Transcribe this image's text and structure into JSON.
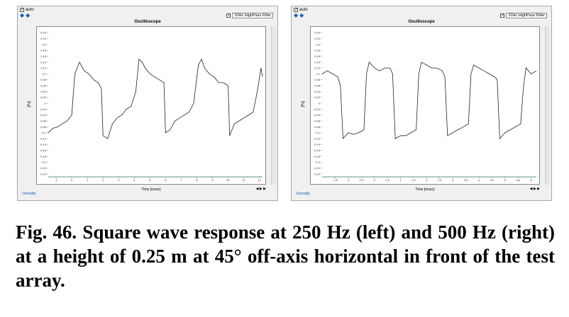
{
  "panels": [
    {
      "auto_label": "auto",
      "filter_label": "10Hz HighPass Filter",
      "title": "Oscilloscope",
      "y_axis_label": "[Pa]",
      "x_axis_label": "Time [msec]",
      "omni_label": "Omnidity",
      "zoom_label": "◀ ▶ ▶",
      "chart_data": {
        "type": "line",
        "title": "Oscilloscope",
        "xlabel": "Time [msec]",
        "ylabel": "[Pa]",
        "xlim": [
          -1.5,
          12.2
        ],
        "ylim": [
          -0.25,
          0.25
        ],
        "x_ticks": [
          -1,
          0,
          1,
          2,
          3,
          4,
          5,
          6,
          7,
          8,
          9,
          10,
          11,
          12
        ],
        "y_ticks": [
          0.24,
          0.22,
          0.2,
          0.18,
          0.16,
          0.14,
          0.12,
          0.1,
          0.08,
          0.06,
          0.04,
          0.02,
          0,
          -0.02,
          -0.04,
          -0.06,
          -0.08,
          -0.1,
          -0.12,
          -0.14,
          -0.16,
          -0.18,
          -0.2,
          -0.22,
          -0.24
        ],
        "x": [
          -1.5,
          -1.2,
          -0.9,
          -0.6,
          -0.3,
          0.0,
          0.2,
          0.5,
          0.8,
          1.1,
          1.4,
          1.7,
          1.9,
          2.0,
          2.3,
          2.6,
          2.9,
          3.2,
          3.5,
          3.8,
          4.1,
          4.3,
          4.5,
          4.7,
          5.0,
          5.3,
          5.6,
          5.9,
          6.0,
          6.3,
          6.6,
          6.9,
          7.2,
          7.5,
          7.8,
          8.1,
          8.3,
          8.5,
          8.8,
          9.1,
          9.4,
          9.7,
          10.0,
          10.1,
          10.4,
          10.7,
          11.0,
          11.3,
          11.6,
          11.9,
          12.1,
          12.2
        ],
        "series": [
          {
            "values": [
              -0.1,
              -0.085,
              -0.08,
              -0.07,
              -0.06,
              -0.04,
              0.1,
              0.14,
              0.11,
              0.1,
              0.08,
              0.07,
              0.05,
              -0.11,
              -0.12,
              -0.07,
              -0.05,
              -0.04,
              -0.02,
              -0.01,
              0.04,
              0.15,
              0.14,
              0.12,
              0.1,
              0.09,
              0.08,
              0.07,
              -0.1,
              -0.09,
              -0.06,
              -0.05,
              -0.04,
              -0.03,
              0.0,
              0.13,
              0.15,
              0.12,
              0.1,
              0.09,
              0.07,
              0.07,
              0.06,
              -0.11,
              -0.07,
              -0.06,
              -0.05,
              -0.04,
              -0.03,
              0.05,
              0.12,
              0.09
            ]
          }
        ]
      }
    },
    {
      "auto_label": "auto",
      "filter_label": "10Hz HighPass Filter",
      "title": "Oscilloscope",
      "y_axis_label": "[Pa]",
      "x_axis_label": "Time [msec]",
      "omni_label": "Omnidity",
      "zoom_label": "◀ ▶ ▶",
      "chart_data": {
        "type": "line",
        "title": "Oscilloscope",
        "xlabel": "Time [msec]",
        "ylabel": "[Pa]",
        "xlim": [
          -2.0,
          6.2
        ],
        "ylim": [
          -0.25,
          0.25
        ],
        "x_ticks": [
          -1.5,
          -1,
          -0.5,
          0,
          0.5,
          1,
          1.5,
          2,
          2.5,
          3,
          3.5,
          4,
          4.5,
          5,
          5.5,
          6
        ],
        "y_ticks": [
          0.24,
          0.22,
          0.2,
          0.18,
          0.16,
          0.14,
          0.12,
          0.1,
          0.08,
          0.06,
          0.04,
          0.02,
          0,
          -0.02,
          -0.04,
          -0.06,
          -0.08,
          -0.1,
          -0.12,
          -0.14,
          -0.16,
          -0.18,
          -0.2,
          -0.22,
          -0.24
        ],
        "x": [
          -2.0,
          -1.8,
          -1.6,
          -1.4,
          -1.3,
          -1.2,
          -1.0,
          -0.8,
          -0.6,
          -0.4,
          -0.3,
          -0.2,
          0.0,
          0.2,
          0.4,
          0.6,
          0.7,
          0.8,
          1.0,
          1.2,
          1.4,
          1.6,
          1.7,
          1.8,
          2.0,
          2.2,
          2.4,
          2.6,
          2.7,
          2.8,
          3.0,
          3.2,
          3.4,
          3.6,
          3.7,
          3.8,
          4.0,
          4.2,
          4.4,
          4.6,
          4.7,
          4.8,
          5.0,
          5.2,
          5.4,
          5.6,
          5.7,
          5.8,
          6.0,
          6.2
        ],
        "series": [
          {
            "values": [
              0.1,
              0.11,
              0.1,
              0.09,
              0.06,
              -0.12,
              -0.1,
              -0.105,
              -0.1,
              -0.09,
              0.1,
              0.14,
              0.12,
              0.11,
              0.12,
              0.12,
              0.1,
              -0.12,
              -0.11,
              -0.11,
              -0.1,
              -0.09,
              0.1,
              0.14,
              0.13,
              0.12,
              0.12,
              0.11,
              0.09,
              -0.11,
              -0.1,
              -0.09,
              -0.08,
              -0.07,
              0.1,
              0.13,
              0.12,
              0.11,
              0.1,
              0.09,
              0.08,
              -0.12,
              -0.1,
              -0.09,
              -0.08,
              -0.07,
              0.05,
              0.12,
              0.1,
              0.11
            ]
          }
        ]
      }
    }
  ],
  "caption": "Fig. 46. Square wave response at 250 Hz (left) and 500 Hz (right) at a height of 0.25 m at 45° off-axis horizontal in front of the test array."
}
